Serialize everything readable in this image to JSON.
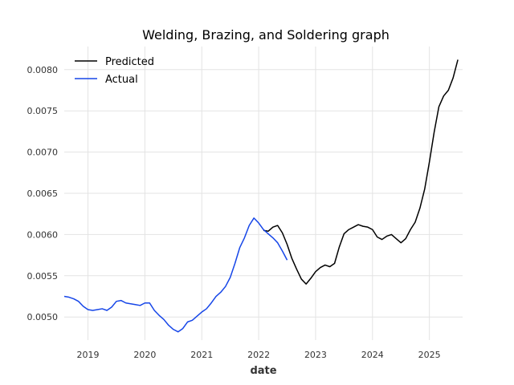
{
  "chart_data": {
    "type": "line",
    "title": "Welding, Brazing, and Soldering graph",
    "xlabel": "date",
    "ylabel": "",
    "x_ticks": [
      "2019",
      "2020",
      "2021",
      "2022",
      "2023",
      "2024",
      "2025"
    ],
    "y_ticks": [
      "0.0050",
      "0.0055",
      "0.0060",
      "0.0065",
      "0.0070",
      "0.0075",
      "0.0080"
    ],
    "xlim": [
      "2018-08",
      "2025-08"
    ],
    "ylim": [
      0.00472,
      0.00828
    ],
    "grid": true,
    "legend_position": "top-left",
    "series": [
      {
        "name": "Predicted",
        "color": "#000000",
        "points": [
          [
            "2022-02",
            0.00605
          ],
          [
            "2022-03",
            0.00604
          ],
          [
            "2022-04",
            0.00609
          ],
          [
            "2022-05",
            0.00611
          ],
          [
            "2022-06",
            0.00602
          ],
          [
            "2022-07",
            0.00588
          ],
          [
            "2022-08",
            0.00571
          ],
          [
            "2022-09",
            0.00558
          ],
          [
            "2022-10",
            0.00546
          ],
          [
            "2022-11",
            0.0054
          ],
          [
            "2022-12",
            0.00547
          ],
          [
            "2023-01",
            0.00555
          ],
          [
            "2023-02",
            0.0056
          ],
          [
            "2023-03",
            0.00563
          ],
          [
            "2023-04",
            0.00561
          ],
          [
            "2023-05",
            0.00565
          ],
          [
            "2023-06",
            0.00585
          ],
          [
            "2023-07",
            0.00601
          ],
          [
            "2023-08",
            0.00606
          ],
          [
            "2023-09",
            0.00609
          ],
          [
            "2023-10",
            0.00612
          ],
          [
            "2023-11",
            0.0061
          ],
          [
            "2023-12",
            0.00609
          ],
          [
            "2024-01",
            0.00606
          ],
          [
            "2024-02",
            0.00597
          ],
          [
            "2024-03",
            0.00594
          ],
          [
            "2024-04",
            0.00598
          ],
          [
            "2024-05",
            0.006
          ],
          [
            "2024-06",
            0.00595
          ],
          [
            "2024-07",
            0.0059
          ],
          [
            "2024-08",
            0.00595
          ],
          [
            "2024-09",
            0.00606
          ],
          [
            "2024-10",
            0.00615
          ],
          [
            "2024-11",
            0.00632
          ],
          [
            "2024-12",
            0.00655
          ],
          [
            "2025-01",
            0.00688
          ],
          [
            "2025-02",
            0.00724
          ],
          [
            "2025-03",
            0.00755
          ],
          [
            "2025-04",
            0.00768
          ],
          [
            "2025-05",
            0.00775
          ],
          [
            "2025-06",
            0.0079
          ],
          [
            "2025-07",
            0.00812
          ]
        ]
      },
      {
        "name": "Actual",
        "color": "#1646e8",
        "points": [
          [
            "2018-08",
            0.00525
          ],
          [
            "2018-09",
            0.00524
          ],
          [
            "2018-10",
            0.00522
          ],
          [
            "2018-11",
            0.00519
          ],
          [
            "2018-12",
            0.00513
          ],
          [
            "2019-01",
            0.00509
          ],
          [
            "2019-02",
            0.00508
          ],
          [
            "2019-03",
            0.00509
          ],
          [
            "2019-04",
            0.0051
          ],
          [
            "2019-05",
            0.00508
          ],
          [
            "2019-06",
            0.00512
          ],
          [
            "2019-07",
            0.00519
          ],
          [
            "2019-08",
            0.0052
          ],
          [
            "2019-09",
            0.00517
          ],
          [
            "2019-10",
            0.00516
          ],
          [
            "2019-11",
            0.00515
          ],
          [
            "2019-12",
            0.00514
          ],
          [
            "2020-01",
            0.00517
          ],
          [
            "2020-02",
            0.00517
          ],
          [
            "2020-03",
            0.00508
          ],
          [
            "2020-04",
            0.00502
          ],
          [
            "2020-05",
            0.00497
          ],
          [
            "2020-06",
            0.0049
          ],
          [
            "2020-07",
            0.00485
          ],
          [
            "2020-08",
            0.00482
          ],
          [
            "2020-09",
            0.00486
          ],
          [
            "2020-10",
            0.00494
          ],
          [
            "2020-11",
            0.00496
          ],
          [
            "2020-12",
            0.00501
          ],
          [
            "2021-01",
            0.00506
          ],
          [
            "2021-02",
            0.0051
          ],
          [
            "2021-03",
            0.00517
          ],
          [
            "2021-04",
            0.00525
          ],
          [
            "2021-05",
            0.0053
          ],
          [
            "2021-06",
            0.00537
          ],
          [
            "2021-07",
            0.00548
          ],
          [
            "2021-08",
            0.00565
          ],
          [
            "2021-09",
            0.00584
          ],
          [
            "2021-10",
            0.00596
          ],
          [
            "2021-11",
            0.00611
          ],
          [
            "2021-12",
            0.0062
          ],
          [
            "2022-01",
            0.00614
          ],
          [
            "2022-02",
            0.00606
          ],
          [
            "2022-03",
            0.00601
          ],
          [
            "2022-04",
            0.00596
          ],
          [
            "2022-05",
            0.0059
          ],
          [
            "2022-06",
            0.0058
          ],
          [
            "2022-07",
            0.00569
          ]
        ]
      }
    ]
  }
}
